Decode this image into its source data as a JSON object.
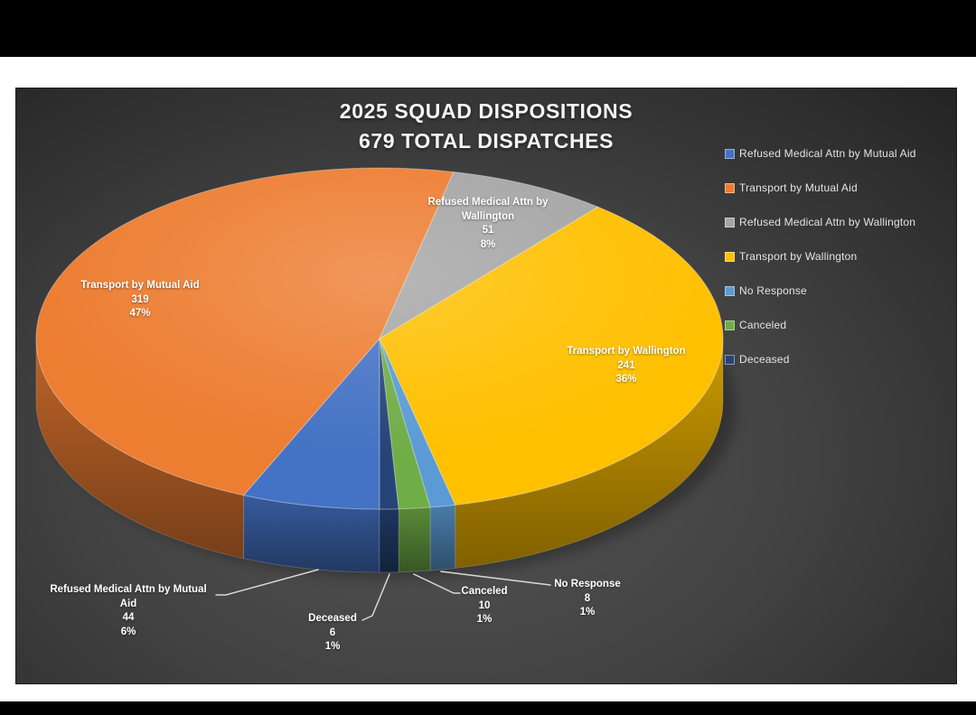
{
  "window": {
    "outer_background": "#000000",
    "page_background": "#ffffff",
    "panel_background": "#434343"
  },
  "chart_data": {
    "type": "pie",
    "effect": "3d",
    "title_line1": "2025 SQUAD DISPOSITIONS",
    "title_line2": "679 TOTAL DISPATCHES",
    "total_dispatches": 679,
    "rotation_deg": 180,
    "grid": false,
    "legend_position": "right",
    "slices": [
      {
        "name": "Refused Medical Attn by Mutual Aid",
        "value": 44,
        "pct_label": "6%",
        "color": "#4472C4",
        "label_placement": "outside",
        "label_lines": [
          "Refused Medical Attn by Mutual",
          "Aid",
          "44",
          "6%"
        ]
      },
      {
        "name": "Transport by Mutual Aid",
        "value": 319,
        "pct_label": "47%",
        "color": "#ED7D31",
        "label_placement": "inside",
        "label_lines": [
          "Transport by Mutual Aid",
          "319",
          "47%"
        ]
      },
      {
        "name": "Refused Medical Attn by Wallington",
        "value": 51,
        "pct_label": "8%",
        "color": "#A5A5A5",
        "label_placement": "inside",
        "label_lines": [
          "Refused Medical Attn by",
          "Wallington",
          "51",
          "8%"
        ]
      },
      {
        "name": "Transport by Wallington",
        "value": 241,
        "pct_label": "36%",
        "color": "#FFC000",
        "label_placement": "inside",
        "label_lines": [
          "Transport by Wallington",
          "241",
          "36%"
        ]
      },
      {
        "name": "No Response",
        "value": 8,
        "pct_label": "1%",
        "color": "#5B9BD5",
        "label_placement": "outside",
        "label_lines": [
          "No Response",
          "8",
          "1%"
        ]
      },
      {
        "name": "Canceled",
        "value": 10,
        "pct_label": "1%",
        "color": "#70AD47",
        "label_placement": "outside",
        "label_lines": [
          "Canceled",
          "10",
          "1%"
        ]
      },
      {
        "name": "Deceased",
        "value": 6,
        "pct_label": "1%",
        "color": "#264478",
        "label_placement": "outside",
        "label_lines": [
          "Deceased",
          "6",
          "1%"
        ]
      }
    ],
    "legend_entries": [
      "Refused Medical Attn by Mutual Aid",
      "Transport by Mutual Aid",
      "Refused Medical Attn by Wallington",
      "Transport by Wallington",
      "No Response",
      "Canceled",
      "Deceased"
    ]
  }
}
